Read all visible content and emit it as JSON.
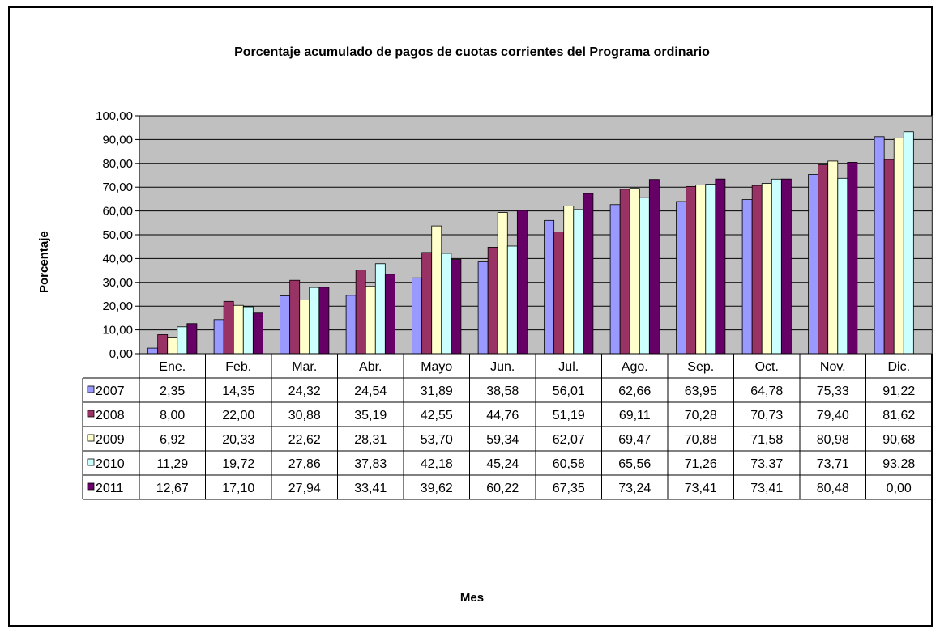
{
  "chart_data": {
    "type": "bar",
    "title": "Porcentaje acumulado de pagos de cuotas corrientes del Programa ordinario",
    "xlabel": "Mes",
    "ylabel": "Porcentaje",
    "ylim": [
      0,
      100
    ],
    "yticks": [
      "0,00",
      "10,00",
      "20,00",
      "30,00",
      "40,00",
      "50,00",
      "60,00",
      "70,00",
      "80,00",
      "90,00",
      "100,00"
    ],
    "grid": true,
    "legend": "data-table-left",
    "categories": [
      "Ene.",
      "Feb.",
      "Mar.",
      "Abr.",
      "Mayo",
      "Jun.",
      "Jul.",
      "Ago.",
      "Sep.",
      "Oct.",
      "Nov.",
      "Dic."
    ],
    "series": [
      {
        "name": "2007",
        "color": "#9999ff",
        "values": [
          2.35,
          14.35,
          24.32,
          24.54,
          31.89,
          38.58,
          56.01,
          62.66,
          63.95,
          64.78,
          75.33,
          91.22
        ],
        "labels": [
          "2,35",
          "14,35",
          "24,32",
          "24,54",
          "31,89",
          "38,58",
          "56,01",
          "62,66",
          "63,95",
          "64,78",
          "75,33",
          "91,22"
        ]
      },
      {
        "name": "2008",
        "color": "#993366",
        "values": [
          8.0,
          22.0,
          30.88,
          35.19,
          42.55,
          44.76,
          51.19,
          69.11,
          70.28,
          70.73,
          79.4,
          81.62
        ],
        "labels": [
          "8,00",
          "22,00",
          "30,88",
          "35,19",
          "42,55",
          "44,76",
          "51,19",
          "69,11",
          "70,28",
          "70,73",
          "79,40",
          "81,62"
        ]
      },
      {
        "name": "2009",
        "color": "#ffffcc",
        "values": [
          6.92,
          20.33,
          22.62,
          28.31,
          53.7,
          59.34,
          62.07,
          69.47,
          70.88,
          71.58,
          80.98,
          90.68
        ],
        "labels": [
          "6,92",
          "20,33",
          "22,62",
          "28,31",
          "53,70",
          "59,34",
          "62,07",
          "69,47",
          "70,88",
          "71,58",
          "80,98",
          "90,68"
        ]
      },
      {
        "name": "2010",
        "color": "#ccffff",
        "values": [
          11.29,
          19.72,
          27.86,
          37.83,
          42.18,
          45.24,
          60.58,
          65.56,
          71.26,
          73.37,
          73.71,
          93.28
        ],
        "labels": [
          "11,29",
          "19,72",
          "27,86",
          "37,83",
          "42,18",
          "45,24",
          "60,58",
          "65,56",
          "71,26",
          "73,37",
          "73,71",
          "93,28"
        ]
      },
      {
        "name": "2011",
        "color": "#660066",
        "values": [
          12.67,
          17.1,
          27.94,
          33.41,
          39.62,
          60.22,
          67.35,
          73.24,
          73.41,
          73.41,
          80.48,
          0.0
        ],
        "labels": [
          "12,67",
          "17,10",
          "27,94",
          "33,41",
          "39,62",
          "60,22",
          "67,35",
          "73,24",
          "73,41",
          "73,41",
          "80,48",
          "0,00"
        ]
      }
    ],
    "plot_background": "#c0c0c0"
  }
}
